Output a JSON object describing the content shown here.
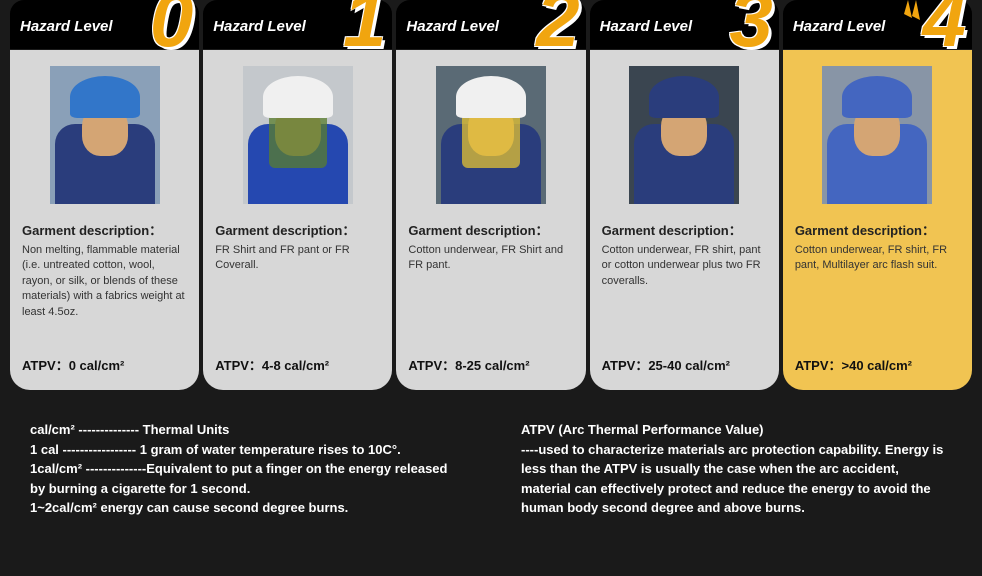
{
  "accent_color": "#f1a50f",
  "header_label": "Hazard Level",
  "levels": [
    {
      "number": "0",
      "desc_title": "Garment description：",
      "desc_text": "Non melting, flammable material (i.e. untreated cotton, wool, rayon, or silk, or blends of these materials) with a fabrics weight at least 4.5oz.",
      "atpv": "ATPV：0 cal/cm²",
      "highlight": false,
      "img": {
        "helmet": "#3276c9",
        "torso": "#2a3d7c",
        "visor": null,
        "bg": "#8aa0b8"
      }
    },
    {
      "number": "1",
      "desc_title": "Garment description：",
      "desc_text": "FR Shirt and FR pant or FR Coverall.",
      "atpv": "ATPV：4-8 cal/cm²",
      "highlight": false,
      "img": {
        "helmet": "#f0f0f0",
        "torso": "#2548b0",
        "visor": "#5a7d2e",
        "bg": "#c4c8cc"
      }
    },
    {
      "number": "2",
      "desc_title": "Garment description：",
      "desc_text": "Cotton underwear, FR Shirt and FR pant.",
      "atpv": "ATPV：8-25 cal/cm²",
      "highlight": false,
      "img": {
        "helmet": "#f0f0f0",
        "torso": "#2a3d7c",
        "visor": "#e3c233",
        "bg": "#5a6a75"
      }
    },
    {
      "number": "3",
      "desc_title": "Garment description：",
      "desc_text": "Cotton underwear, FR shirt, pant or cotton underwear plus two FR coveralls.",
      "atpv": "ATPV：25-40 cal/cm²",
      "highlight": false,
      "img": {
        "helmet": "#2a3d7c",
        "torso": "#2a3d7c",
        "visor": null,
        "bg": "#3a4550"
      }
    },
    {
      "number": "4",
      "desc_title": "Garment description：",
      "desc_text": "Cotton underwear, FR shirt, FR pant, Multilayer arc flash suit.",
      "atpv": "ATPV：>40 cal/cm²",
      "highlight": true,
      "img": {
        "helmet": "#4466c0",
        "torso": "#4466c0",
        "visor": null,
        "bg": "#8895a6"
      }
    }
  ],
  "footer_left_lines": [
    "cal/cm² -------------- Thermal Units",
    "1 cal ----------------- 1 gram of water temperature rises to 10C°.",
    "1cal/cm² --------------Equivalent to put a finger on the energy released by burning a cigarette for 1 second.",
    "1~2cal/cm²  energy can cause second degree burns."
  ],
  "footer_right_lines": [
    "ATPV (Arc Thermal Performance Value)",
    "----used to characterize materials arc protection capability. Energy is less than the ATPV is usually the case when the arc accident, material can effectively protect and reduce the energy to avoid the human body second degree and above burns."
  ]
}
